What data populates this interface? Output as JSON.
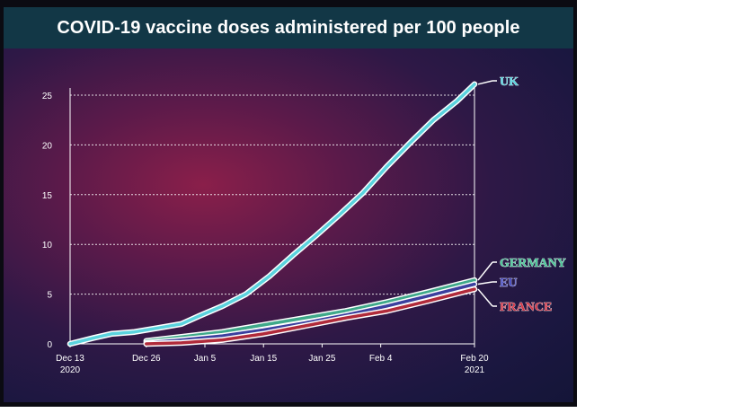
{
  "title": "COVID-19 vaccine doses administered per 100 people",
  "chart_data": {
    "type": "line",
    "title": "COVID-19 vaccine doses administered per 100 people",
    "xlabel": "",
    "ylabel": "",
    "x_tick_labels": [
      "Dec 13\n2020",
      "Dec 26",
      "Jan 5",
      "Jan 15",
      "Jan 25",
      "Feb 4",
      "Feb 20\n2021"
    ],
    "y_tick_labels": [
      "0",
      "5",
      "10",
      "15",
      "20",
      "25"
    ],
    "ylim": [
      0,
      25
    ],
    "grid": "horizontal dotted",
    "series": [
      {
        "name": "UK",
        "color": "#5bd3de",
        "x": [
          "2020-12-13",
          "2020-12-17",
          "2020-12-20",
          "2020-12-24",
          "2020-12-28",
          "2021-01-01",
          "2021-01-04",
          "2021-01-08",
          "2021-01-12",
          "2021-01-16",
          "2021-01-20",
          "2021-01-24",
          "2021-01-28",
          "2021-02-01",
          "2021-02-05",
          "2021-02-09",
          "2021-02-13",
          "2021-02-17",
          "2021-02-20"
        ],
        "values": [
          0,
          0.6,
          1.0,
          1.2,
          1.6,
          2.0,
          2.8,
          3.8,
          5.0,
          6.8,
          8.9,
          10.9,
          13.0,
          15.2,
          17.8,
          20.2,
          22.5,
          24.4,
          26.1
        ]
      },
      {
        "name": "GERMANY",
        "color": "#3fa98a",
        "x": [
          "2020-12-26",
          "2021-01-01",
          "2021-01-08",
          "2021-01-15",
          "2021-01-22",
          "2021-01-29",
          "2021-02-05",
          "2021-02-12",
          "2021-02-20"
        ],
        "values": [
          0.3,
          0.7,
          1.2,
          1.9,
          2.6,
          3.3,
          4.2,
          5.2,
          6.4
        ]
      },
      {
        "name": "EU",
        "color": "#3b3f9e",
        "x": [
          "2020-12-26",
          "2021-01-01",
          "2021-01-08",
          "2021-01-15",
          "2021-01-22",
          "2021-01-29",
          "2021-02-05",
          "2021-02-12",
          "2021-02-20"
        ],
        "values": [
          0.1,
          0.4,
          0.8,
          1.4,
          2.1,
          2.9,
          3.8,
          4.8,
          6.0
        ]
      },
      {
        "name": "FRANCE",
        "color": "#b02a3a",
        "x": [
          "2020-12-26",
          "2021-01-01",
          "2021-01-08",
          "2021-01-15",
          "2021-01-22",
          "2021-01-29",
          "2021-02-05",
          "2021-02-12",
          "2021-02-20"
        ],
        "values": [
          0.0,
          0.1,
          0.4,
          1.0,
          1.8,
          2.6,
          3.3,
          4.3,
          5.5
        ]
      }
    ]
  }
}
